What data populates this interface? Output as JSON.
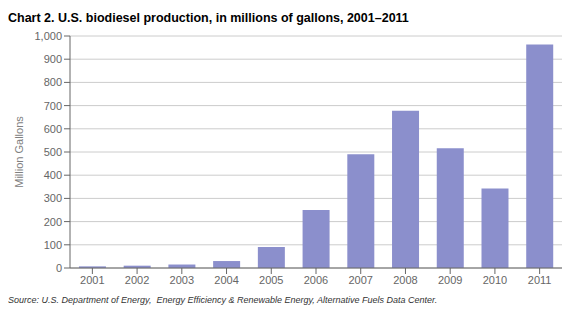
{
  "chart_data": {
    "type": "bar",
    "title": "Chart 2. U.S. biodiesel production, in millions of gallons, 2001–2011",
    "ylabel": "Million Gallons",
    "annotations": [
      "Source: U.S. Department of Energy,  Energy Efficiency & Renewable Energy, Alternative Fuels Data Center."
    ],
    "categories": [
      "2001",
      "2002",
      "2003",
      "2004",
      "2005",
      "2006",
      "2007",
      "2008",
      "2009",
      "2010",
      "2011"
    ],
    "values": [
      7,
      10,
      15,
      30,
      90,
      250,
      490,
      678,
      516,
      343,
      963
    ],
    "color": "#8b8fcc",
    "ylim": [
      0,
      1000
    ],
    "yticks": [
      0,
      100,
      200,
      300,
      400,
      500,
      600,
      700,
      800,
      900,
      {
        "value": 1000,
        "label": "1,000"
      }
    ],
    "grid": true
  }
}
